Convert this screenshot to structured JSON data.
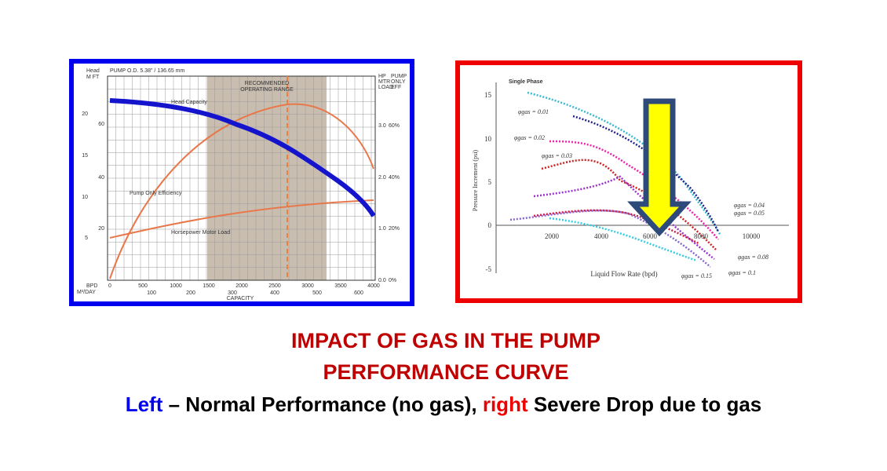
{
  "left_chart": {
    "axis_head": "Head",
    "axis_units": "M  FT",
    "pump_od": "PUMP O.D. 5.38\" / 136.65 mm",
    "range_label": [
      "RECOMMENDED",
      "OPERATING RANGE"
    ],
    "right_head": [
      "HP",
      "MTR",
      "LOAD"
    ],
    "eff_head": [
      "PUMP",
      "ONLY",
      "EFF"
    ],
    "curve_labels": [
      "Head Capacity",
      "Pump Only Efficiency",
      "Horsepower Motor Load"
    ],
    "ft_ticks": [
      "60",
      "40",
      "20"
    ],
    "m_ticks": [
      "20",
      "15",
      "10",
      "5"
    ],
    "hp_ticks": [
      "3.0",
      "2.0",
      "1.0",
      "0.0"
    ],
    "eff_ticks": [
      "60%",
      "40%",
      "20%",
      "0%"
    ],
    "bpd_label": "BPD",
    "m3_label": "M³/DAY",
    "bpd_ticks": [
      "0",
      "500",
      "1000",
      "1500",
      "2000",
      "2500",
      "3000",
      "3500",
      "4000"
    ],
    "m3_ticks": [
      "100",
      "200",
      "300",
      "400",
      "500",
      "600"
    ],
    "x_title": "CAPACITY"
  },
  "right_chart": {
    "single_phase": "Single Phase",
    "y_title": "Pressure Increment (psi)",
    "x_title": "Liquid Flow Rate (bpd)",
    "y_ticks": [
      "15",
      "10",
      "5",
      "0",
      "-5"
    ],
    "x_ticks": [
      "2000",
      "4000",
      "6000",
      "8000",
      "10000"
    ],
    "gas_labels": [
      "φgas = 0.01",
      "φgas = 0.02",
      "φgas = 0.03",
      "φgas = 0.04",
      "φgas = 0.05",
      "φgas = 0.08",
      "φgas = 0.1",
      "φgas = 0.15"
    ]
  },
  "caption": {
    "title": [
      "IMPACT OF GAS IN THE PUMP",
      "PERFORMANCE CURVE"
    ],
    "left_word": "Left",
    "left_text": " – Normal Performance (no gas), ",
    "right_word": "right",
    "right_text": " Severe Drop due to gas"
  }
}
